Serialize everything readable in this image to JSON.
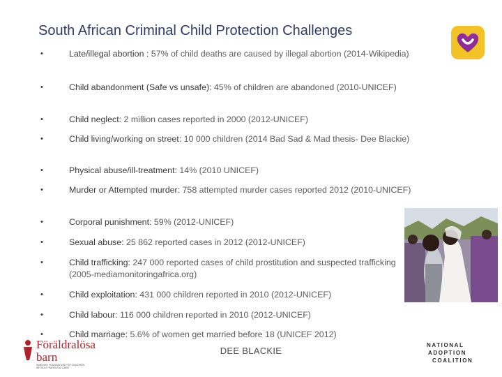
{
  "slide": {
    "title": "South African Criminal Child Protection Challenges",
    "bullets": [
      {
        "label": "Late/illegal abortion : ",
        "value": "57% of child deaths are caused by illegal abortion (2014-Wikipedia)"
      },
      {
        "label": "Child abandonment (Safe vs unsafe):  ",
        "value": "45% of children are abandoned (2010-UNICEF)"
      },
      {
        "label": "Child neglect: ",
        "value": "2 million cases reported in 2000 (2012-UNICEF)"
      },
      {
        "label": "Child living/working on street: ",
        "value": "10 000 children (2014 Bad Sad & Mad thesis- Dee Blackie)"
      },
      {
        "label": "Physical abuse/ill-treatment: ",
        "value": "14% (2010 UNICEF)"
      },
      {
        "label": "Murder or Attempted murder: ",
        "value": "758 attempted murder cases reported 2012 (2010-UNICEF)"
      },
      {
        "label": "Corporal punishment: ",
        "value": "59% (2012-UNICEF)"
      },
      {
        "label": "Sexual abuse: ",
        "value": "25 862 reported cases in 2012 (2012-UNICEF)"
      },
      {
        "label": "Child trafficking: ",
        "value": "247 000 reported cases of child prostitution and suspected trafficking (2005-mediamonitoringafrica.org)"
      },
      {
        "label": "Child exploitation: ",
        "value": "431 000 children reported in 2010 (2012-UNICEF)"
      },
      {
        "label": "Child labour: ",
        "value": "116 000 children reported in 2010 (2012-UNICEF)"
      },
      {
        "label": "Child marriage: ",
        "value": "5.6% of women get married before 18 (UNICEF 2012)"
      }
    ],
    "bullet_char": "•",
    "footer": "DEE BLACKIE"
  },
  "logos": {
    "left_line1": "Föräldralösa",
    "left_line2": "barn",
    "left_small1": "SWEDISH FOUNDATION FOR CHILDREN",
    "left_small2": "WITHOUT PARENTAL CARE",
    "right_line1": "NATIONAL",
    "right_line2": "ADOPTION",
    "right_line3": "COALITION"
  },
  "colors": {
    "title": "#2f3b66",
    "heart_bg": "#f2c228",
    "heart": "#8e2d9a",
    "brand_red": "#b0232a"
  },
  "icons": {
    "top_right_logo": "heart-logo-icon",
    "photo": "wedding-photo"
  }
}
